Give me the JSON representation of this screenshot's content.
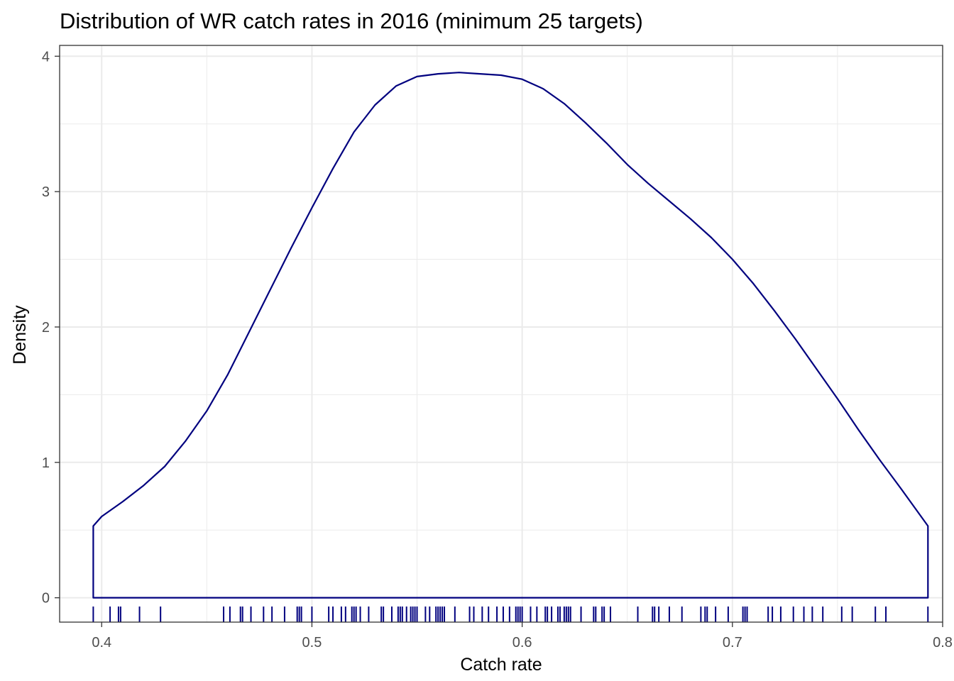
{
  "chart_data": {
    "type": "area",
    "title": "Distribution of WR catch rates in 2016 (minimum 25 targets)",
    "xlabel": "Catch rate",
    "ylabel": "Density",
    "xlim": [
      0.38,
      0.8
    ],
    "ylim": [
      -0.18,
      4.08
    ],
    "x_ticks": [
      0.4,
      0.5,
      0.6,
      0.7,
      0.8
    ],
    "x_tick_labels": [
      "0.4",
      "0.5",
      "0.6",
      "0.7",
      "0.8"
    ],
    "y_ticks": [
      0,
      1,
      2,
      3,
      4
    ],
    "y_tick_labels": [
      "0",
      "1",
      "2",
      "3",
      "4"
    ],
    "grid": true,
    "line_color": "#00007f",
    "density": {
      "x": [
        0.396,
        0.4,
        0.41,
        0.42,
        0.43,
        0.44,
        0.45,
        0.46,
        0.47,
        0.48,
        0.49,
        0.5,
        0.51,
        0.52,
        0.53,
        0.54,
        0.55,
        0.56,
        0.57,
        0.58,
        0.59,
        0.6,
        0.61,
        0.62,
        0.63,
        0.64,
        0.65,
        0.66,
        0.67,
        0.68,
        0.69,
        0.7,
        0.71,
        0.72,
        0.73,
        0.74,
        0.75,
        0.76,
        0.77,
        0.78,
        0.793
      ],
      "y": [
        0.53,
        0.6,
        0.71,
        0.83,
        0.97,
        1.16,
        1.38,
        1.65,
        1.96,
        2.27,
        2.58,
        2.88,
        3.17,
        3.44,
        3.64,
        3.78,
        3.85,
        3.87,
        3.88,
        3.87,
        3.86,
        3.83,
        3.76,
        3.65,
        3.51,
        3.36,
        3.2,
        3.06,
        2.93,
        2.8,
        2.66,
        2.5,
        2.32,
        2.12,
        1.91,
        1.69,
        1.47,
        1.24,
        1.02,
        0.81,
        0.53
      ]
    },
    "rug": [
      0.396,
      0.404,
      0.408,
      0.409,
      0.418,
      0.428,
      0.458,
      0.461,
      0.466,
      0.467,
      0.471,
      0.477,
      0.481,
      0.487,
      0.493,
      0.494,
      0.495,
      0.5,
      0.508,
      0.51,
      0.514,
      0.516,
      0.519,
      0.52,
      0.521,
      0.523,
      0.527,
      0.533,
      0.534,
      0.538,
      0.541,
      0.542,
      0.543,
      0.545,
      0.547,
      0.548,
      0.549,
      0.55,
      0.554,
      0.556,
      0.559,
      0.56,
      0.561,
      0.562,
      0.563,
      0.568,
      0.575,
      0.577,
      0.581,
      0.584,
      0.588,
      0.591,
      0.594,
      0.597,
      0.598,
      0.599,
      0.6,
      0.604,
      0.607,
      0.611,
      0.612,
      0.614,
      0.617,
      0.618,
      0.62,
      0.621,
      0.622,
      0.623,
      0.628,
      0.634,
      0.635,
      0.638,
      0.639,
      0.642,
      0.655,
      0.662,
      0.663,
      0.665,
      0.67,
      0.676,
      0.685,
      0.687,
      0.688,
      0.692,
      0.698,
      0.705,
      0.706,
      0.707,
      0.717,
      0.719,
      0.723,
      0.729,
      0.734,
      0.738,
      0.743,
      0.752,
      0.757,
      0.768,
      0.773,
      0.793
    ]
  }
}
